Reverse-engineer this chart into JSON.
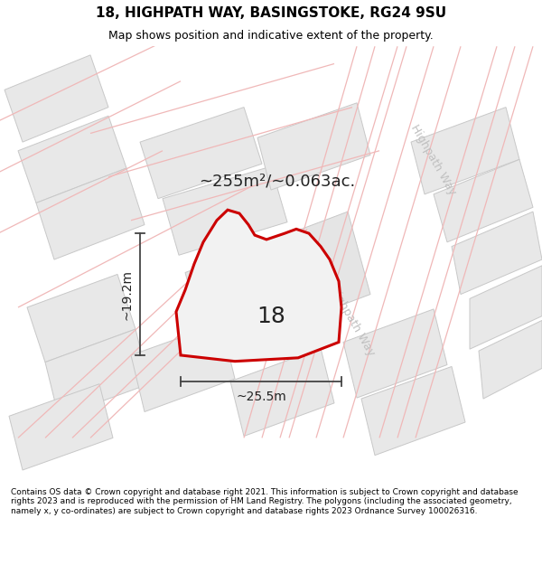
{
  "title": "18, HIGHPATH WAY, BASINGSTOKE, RG24 9SU",
  "subtitle": "Map shows position and indicative extent of the property.",
  "footer": "Contains OS data © Crown copyright and database right 2021. This information is subject to Crown copyright and database rights 2023 and is reproduced with the permission of HM Land Registry. The polygons (including the associated geometry, namely x, y co-ordinates) are subject to Crown copyright and database rights 2023 Ordnance Survey 100026316.",
  "area_label": "~255m²/~0.063ac.",
  "width_label": "~25.5m",
  "height_label": "~19.2m",
  "property_number": "18",
  "map_bg": "#f9f9f9",
  "block_fill": "#e8e8e8",
  "block_edge": "#c8c8c8",
  "road_line_color": "#f0b8b8",
  "prop_edge": "#cc0000",
  "prop_fill": "#f2f2f2",
  "dim_color": "#444444",
  "road_label_color": "#c0c0c0",
  "text_color": "#222222",
  "title_size": 11,
  "subtitle_size": 9,
  "area_label_size": 13,
  "number_size": 18,
  "dim_label_size": 10,
  "road_label_size": 9,
  "footer_size": 6.5
}
